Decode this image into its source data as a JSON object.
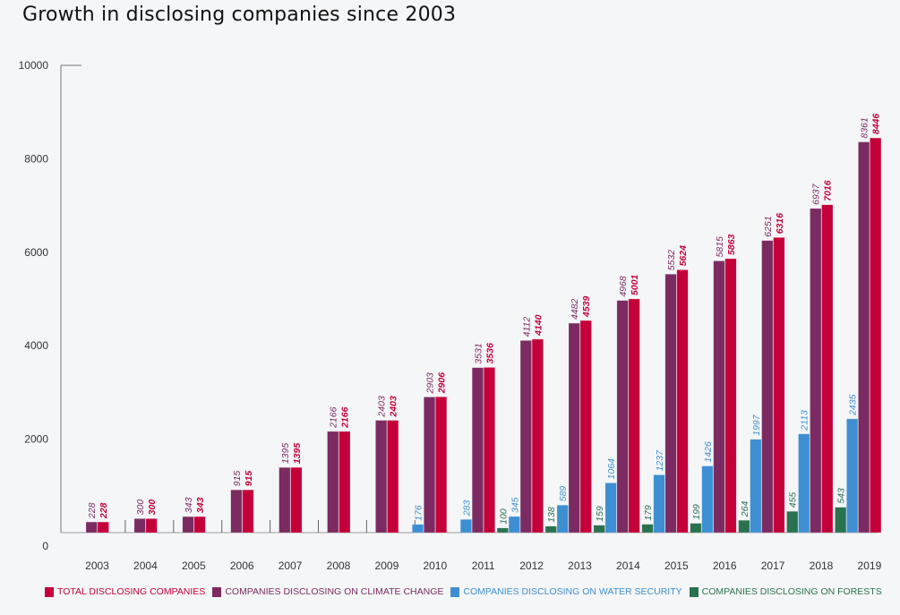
{
  "chart_data": {
    "type": "bar",
    "title": "Growth in disclosing companies since 2003",
    "xlabel": "",
    "ylabel": "",
    "ylim": [
      0,
      10000
    ],
    "yticks": [
      0,
      2000,
      4000,
      6000,
      8000,
      10000
    ],
    "grid": false,
    "legend_position": "bottom",
    "categories": [
      "2003",
      "2004",
      "2005",
      "2006",
      "2007",
      "2008",
      "2009",
      "2010",
      "2011",
      "2012",
      "2013",
      "2014",
      "2015",
      "2016",
      "2017",
      "2018",
      "2019"
    ],
    "series": [
      {
        "key": "forests",
        "name": "COMPANIES DISCLOSING ON FORESTS",
        "color": "#2a7150",
        "values": [
          null,
          null,
          null,
          null,
          null,
          null,
          null,
          null,
          null,
          100,
          138,
          159,
          179,
          199,
          264,
          455,
          543
        ]
      },
      {
        "key": "water",
        "name": "COMPANIES DISCLOSING ON WATER SECURITY",
        "color": "#3d8fd1",
        "values": [
          null,
          null,
          null,
          null,
          null,
          null,
          null,
          176,
          283,
          345,
          589,
          1064,
          1237,
          1426,
          1997,
          2113,
          2435
        ]
      },
      {
        "key": "climate",
        "name": "COMPANIES DISCLOSING ON CLIMATE CHANGE",
        "color": "#7b2b62",
        "values": [
          228,
          300,
          343,
          915,
          1395,
          2166,
          2403,
          2903,
          3531,
          4112,
          4482,
          4968,
          5532,
          5815,
          6251,
          6937,
          8361
        ]
      },
      {
        "key": "total",
        "name": "TOTAL DISCLOSING COMPANIES",
        "color": "#c4003a",
        "values": [
          228,
          300,
          343,
          915,
          1395,
          2166,
          2403,
          2906,
          3536,
          4140,
          4539,
          5001,
          5624,
          5863,
          6316,
          7016,
          8446
        ]
      }
    ]
  },
  "legend": [
    {
      "label": "TOTAL DISCLOSING COMPANIES",
      "color": "#c4003a"
    },
    {
      "label": "COMPANIES DISCLOSING ON CLIMATE CHANGE",
      "color": "#7b2b62"
    },
    {
      "label": "COMPANIES DISCLOSING ON WATER SECURITY",
      "color": "#3d8fd1"
    },
    {
      "label": "COMPANIES DISCLOSING ON FORESTS",
      "color": "#2a7150"
    }
  ]
}
